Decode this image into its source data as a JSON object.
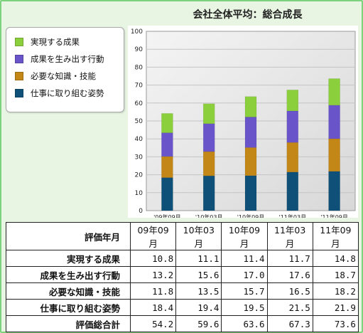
{
  "title": "会社全体平均：総合成長",
  "colors": {
    "series": [
      "#8ccf3c",
      "#6955c9",
      "#c28716",
      "#0e5077"
    ],
    "plot_bg": "#e9e9e9",
    "frame_border": "#7ed27e"
  },
  "chart_data": {
    "type": "bar",
    "stacked": true,
    "categories": [
      "'09年09月",
      "'10年03月",
      "'10年09月",
      "'11年03月",
      "'11年09月"
    ],
    "series": [
      {
        "name": "仕事に取り組む姿勢",
        "values": [
          18.4,
          19.4,
          19.5,
          21.5,
          21.9
        ]
      },
      {
        "name": "必要な知識・技能",
        "values": [
          11.8,
          13.5,
          15.7,
          16.5,
          18.2
        ]
      },
      {
        "name": "成果を生み出す行動",
        "values": [
          13.2,
          15.6,
          17.0,
          17.6,
          18.7
        ]
      },
      {
        "name": "実現する成果",
        "values": [
          10.8,
          11.1,
          11.4,
          11.7,
          14.8
        ]
      }
    ],
    "ylim": [
      0,
      100
    ],
    "yticks": [
      "0",
      "10",
      "20",
      "30",
      "40",
      "50",
      "60",
      "70",
      "80",
      "90",
      "100"
    ],
    "grid": true,
    "legend_position": "left"
  },
  "legend": [
    {
      "label": "実現する成果",
      "color": "#8ccf3c"
    },
    {
      "label": "成果を生み出す行動",
      "color": "#6955c9"
    },
    {
      "label": "必要な知識・技能",
      "color": "#c28716"
    },
    {
      "label": "仕事に取り組む姿勢",
      "color": "#0e5077"
    }
  ],
  "table": {
    "header_label": "評価年月",
    "columns": [
      "09年09月",
      "10年03月",
      "10年09月",
      "11年03月",
      "11年09月"
    ],
    "rows": [
      {
        "label": "実現する成果",
        "values": [
          "10.8",
          "11.1",
          "11.4",
          "11.7",
          "14.8"
        ]
      },
      {
        "label": "成果を生み出す行動",
        "values": [
          "13.2",
          "15.6",
          "17.0",
          "17.6",
          "18.7"
        ]
      },
      {
        "label": "必要な知識・技能",
        "values": [
          "11.8",
          "13.5",
          "15.7",
          "16.5",
          "18.2"
        ]
      },
      {
        "label": "仕事に取り組む姿勢",
        "values": [
          "18.4",
          "19.4",
          "19.5",
          "21.5",
          "21.9"
        ]
      },
      {
        "label": "評価総合計",
        "values": [
          "54.2",
          "59.6",
          "63.6",
          "67.3",
          "73.6"
        ]
      }
    ]
  }
}
